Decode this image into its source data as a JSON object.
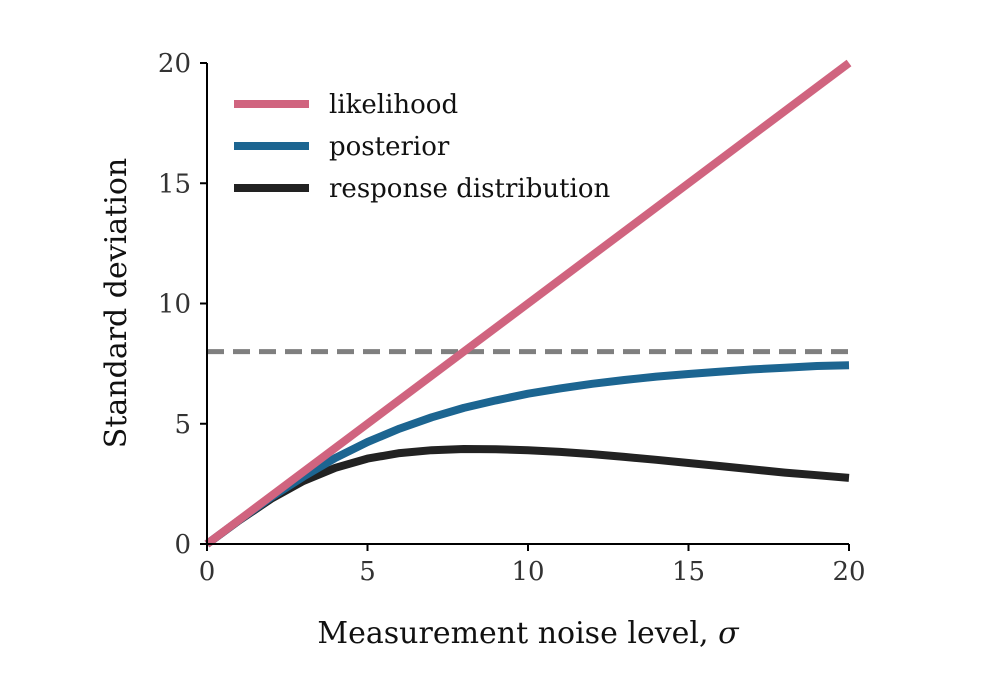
{
  "chart_data": {
    "type": "line",
    "xlabel": "Measurement noise level, ",
    "xlabel_symbol": "σ",
    "ylabel": "Standard deviation",
    "xlim": [
      0,
      20
    ],
    "ylim": [
      0,
      20
    ],
    "x_ticks": [
      "0",
      "5",
      "10",
      "15",
      "20"
    ],
    "y_ticks": [
      "0",
      "5",
      "10",
      "15",
      "20"
    ],
    "grid": false,
    "legend_position": "top-left",
    "series": [
      {
        "name": "likelihood",
        "color": "#d0647f",
        "x": [
          0,
          20
        ],
        "y": [
          0,
          20
        ]
      },
      {
        "name": "posterior",
        "color": "#1c6591",
        "x": [
          0,
          1,
          2,
          3,
          4,
          5,
          6,
          7,
          8,
          9,
          10,
          11,
          12,
          13,
          14,
          15,
          16,
          17,
          18,
          19,
          20
        ],
        "y": [
          0,
          0.99,
          1.94,
          2.8,
          3.58,
          4.24,
          4.8,
          5.27,
          5.66,
          5.97,
          6.25,
          6.47,
          6.66,
          6.82,
          6.96,
          7.07,
          7.17,
          7.26,
          7.33,
          7.4,
          7.43
        ]
      },
      {
        "name": "response distribution",
        "color": "#222222",
        "x": [
          0,
          1,
          2,
          3,
          4,
          5,
          6,
          7,
          8,
          9,
          10,
          11,
          12,
          13,
          14,
          15,
          16,
          17,
          18,
          19,
          20
        ],
        "y": [
          0,
          0.98,
          1.88,
          2.62,
          3.17,
          3.55,
          3.78,
          3.9,
          3.95,
          3.94,
          3.9,
          3.83,
          3.74,
          3.62,
          3.5,
          3.37,
          3.24,
          3.1,
          2.97,
          2.86,
          2.75
        ]
      }
    ],
    "reference_line": {
      "y": 8,
      "style": "dashed",
      "color": "#7f7f7f"
    }
  }
}
